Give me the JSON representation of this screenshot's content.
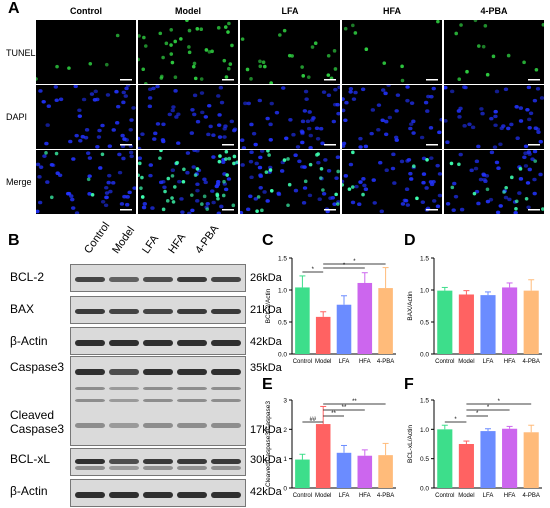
{
  "panel_labels": {
    "A": "A",
    "B": "B",
    "C": "C",
    "D": "D",
    "E": "E",
    "F": "F"
  },
  "panel_a": {
    "columns": [
      "Control",
      "Model",
      "LFA",
      "HFA",
      "4-PBA"
    ],
    "rows": [
      "TUNEL",
      "DAPI",
      "Merge"
    ],
    "tunel_color": "#2ecc40",
    "dapi_color": "#2233ff"
  },
  "panel_b": {
    "lanes": [
      "Control",
      "Model",
      "LFA",
      "HFA",
      "4-PBA"
    ],
    "blots": [
      {
        "label": "BCL-2",
        "kda": "26kDa"
      },
      {
        "label": "BAX",
        "kda": "21kDa"
      },
      {
        "label": "β-Actin",
        "kda": "42kDa"
      },
      {
        "label": "Caspase3",
        "kda": "35kDa"
      },
      {
        "label": "Cleaved Caspase3",
        "kda": "17kDa"
      },
      {
        "label": "BCL-xL",
        "kda": "30kDa"
      },
      {
        "label": "β-Actin",
        "kda": "42kDa"
      }
    ]
  },
  "chart_data": [
    {
      "panel": "C",
      "type": "bar",
      "categories": [
        "Control",
        "Model",
        "LFA",
        "HFA",
        "4-PBA"
      ],
      "values": [
        1.04,
        0.58,
        0.77,
        1.11,
        1.03
      ],
      "errors": [
        0.18,
        0.08,
        0.14,
        0.16,
        0.32
      ],
      "ylabel": "BCL-2/Actin",
      "ylim": [
        0,
        1.5
      ],
      "yticks": [
        0.0,
        0.5,
        1.0,
        1.5
      ],
      "colors": [
        "#3dde8b",
        "#ff6262",
        "#6b8cff",
        "#cc66ee",
        "#ffbb7a"
      ],
      "annotations": [
        "*",
        "*",
        "*"
      ]
    },
    {
      "panel": "D",
      "type": "bar",
      "categories": [
        "Control",
        "Model",
        "LFA",
        "HFA",
        "4-PBA"
      ],
      "values": [
        0.99,
        0.93,
        0.92,
        1.04,
        0.99
      ],
      "errors": [
        0.05,
        0.06,
        0.05,
        0.07,
        0.17
      ],
      "ylabel": "BAX/Actin",
      "ylim": [
        0,
        1.5
      ],
      "yticks": [
        0.0,
        0.5,
        1.0,
        1.5
      ],
      "colors": [
        "#3dde8b",
        "#ff6262",
        "#6b8cff",
        "#cc66ee",
        "#ffbb7a"
      ],
      "annotations": []
    },
    {
      "panel": "E",
      "type": "bar",
      "categories": [
        "Control",
        "Model",
        "LFA",
        "HFA",
        "4-PBA"
      ],
      "values": [
        0.97,
        2.18,
        1.2,
        1.1,
        1.12
      ],
      "errors": [
        0.18,
        0.6,
        0.25,
        0.2,
        0.4
      ],
      "ylabel": "Cleaved Caspase3/Caspase3",
      "ylim": [
        0,
        3
      ],
      "yticks": [
        0,
        1,
        2,
        3
      ],
      "colors": [
        "#3dde8b",
        "#ff6262",
        "#6b8cff",
        "#cc66ee",
        "#ffbb7a"
      ],
      "annotations": [
        "##",
        "**",
        "**",
        "**"
      ]
    },
    {
      "panel": "F",
      "type": "bar",
      "categories": [
        "Control",
        "Model",
        "LFA",
        "HFA",
        "4-PBA"
      ],
      "values": [
        1.0,
        0.75,
        0.97,
        1.01,
        0.95
      ],
      "errors": [
        0.07,
        0.05,
        0.04,
        0.04,
        0.12
      ],
      "ylabel": "BCL-xL/Actin",
      "ylim": [
        0,
        1.5
      ],
      "yticks": [
        0.0,
        0.5,
        1.0,
        1.5
      ],
      "colors": [
        "#3dde8b",
        "#ff6262",
        "#6b8cff",
        "#cc66ee",
        "#ffbb7a"
      ],
      "annotations": [
        "*",
        "*",
        "*",
        "*"
      ]
    }
  ]
}
